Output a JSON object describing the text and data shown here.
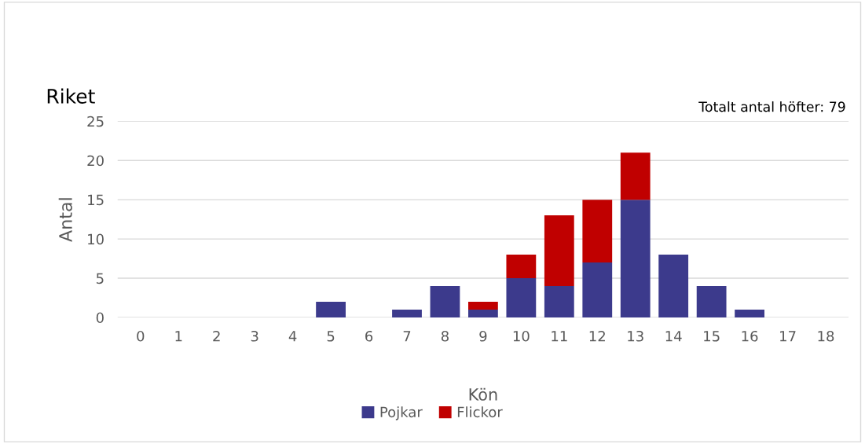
{
  "chart_data": {
    "type": "bar",
    "stacked": true,
    "title": "Riket",
    "xlabel": "Kön",
    "ylabel": "Antal",
    "annotations": [
      "Totalt antal höfter: 79"
    ],
    "categories": [
      "0",
      "1",
      "2",
      "3",
      "4",
      "5",
      "6",
      "7",
      "8",
      "9",
      "10",
      "11",
      "12",
      "13",
      "14",
      "15",
      "16",
      "17",
      "18"
    ],
    "series": [
      {
        "name": "Pojkar",
        "color": "#3c3a8c",
        "values": [
          0,
          0,
          0,
          0,
          0,
          2,
          0,
          1,
          4,
          1,
          5,
          4,
          7,
          15,
          8,
          4,
          1,
          0,
          0
        ]
      },
      {
        "name": "Flickor",
        "color": "#c00000",
        "values": [
          0,
          0,
          0,
          0,
          0,
          0,
          0,
          0,
          0,
          1,
          3,
          9,
          8,
          6,
          0,
          0,
          0,
          0,
          0
        ]
      }
    ],
    "ylim": [
      0,
      25
    ],
    "yticks": [
      0,
      5,
      10,
      15,
      20,
      25
    ],
    "grid": "y",
    "legend": "bottom"
  }
}
